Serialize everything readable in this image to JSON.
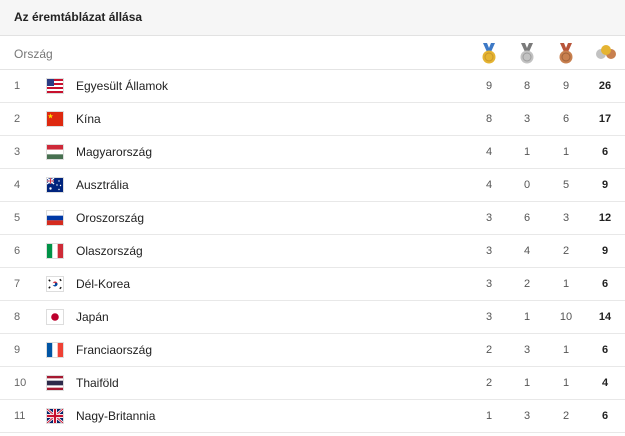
{
  "title": "Az éremtáblázat állása",
  "columns": {
    "country": "Ország",
    "gold_icon": "gold-medal-icon",
    "silver_icon": "silver-medal-icon",
    "bronze_icon": "bronze-medal-icon",
    "total_icon": "total-medals-icon"
  },
  "colors": {
    "gold": "#e5b432",
    "silver": "#b9b9b9",
    "bronze": "#c8804f",
    "ribbon_gold": "#3d79c6",
    "ribbon_silver": "#7a7a7a",
    "ribbon_bronze": "#b8553a"
  },
  "rows": [
    {
      "rank": "1",
      "flag": "us-flag-icon",
      "country": "Egyesült Államok",
      "gold": "9",
      "silver": "8",
      "bronze": "9",
      "total": "26"
    },
    {
      "rank": "2",
      "flag": "china-flag-icon",
      "country": "Kína",
      "gold": "8",
      "silver": "3",
      "bronze": "6",
      "total": "17"
    },
    {
      "rank": "3",
      "flag": "hungary-flag-icon",
      "country": "Magyarország",
      "gold": "4",
      "silver": "1",
      "bronze": "1",
      "total": "6"
    },
    {
      "rank": "4",
      "flag": "australia-flag-icon",
      "country": "Ausztrália",
      "gold": "4",
      "silver": "0",
      "bronze": "5",
      "total": "9"
    },
    {
      "rank": "5",
      "flag": "russia-flag-icon",
      "country": "Oroszország",
      "gold": "3",
      "silver": "6",
      "bronze": "3",
      "total": "12"
    },
    {
      "rank": "6",
      "flag": "italy-flag-icon",
      "country": "Olaszország",
      "gold": "3",
      "silver": "4",
      "bronze": "2",
      "total": "9"
    },
    {
      "rank": "7",
      "flag": "south-korea-flag-icon",
      "country": "Dél-Korea",
      "gold": "3",
      "silver": "2",
      "bronze": "1",
      "total": "6"
    },
    {
      "rank": "8",
      "flag": "japan-flag-icon",
      "country": "Japán",
      "gold": "3",
      "silver": "1",
      "bronze": "10",
      "total": "14"
    },
    {
      "rank": "9",
      "flag": "france-flag-icon",
      "country": "Franciaország",
      "gold": "2",
      "silver": "3",
      "bronze": "1",
      "total": "6"
    },
    {
      "rank": "10",
      "flag": "thailand-flag-icon",
      "country": "Thaiföld",
      "gold": "2",
      "silver": "1",
      "bronze": "1",
      "total": "4"
    },
    {
      "rank": "11",
      "flag": "uk-flag-icon",
      "country": "Nagy-Britannia",
      "gold": "1",
      "silver": "3",
      "bronze": "2",
      "total": "6"
    }
  ]
}
